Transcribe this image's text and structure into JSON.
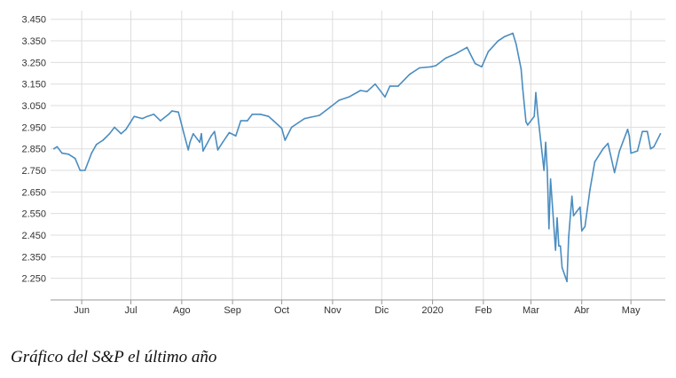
{
  "caption": "Gráfico del S&P el último año",
  "chart_data": {
    "type": "line",
    "title": "",
    "xlabel": "",
    "ylabel": "",
    "ylim": [
      2150,
      3490
    ],
    "yticks": [
      2250,
      2350,
      2450,
      2550,
      2650,
      2750,
      2850,
      2950,
      3050,
      3150,
      3250,
      3350,
      3450
    ],
    "ytick_labels": [
      "2.250",
      "2.350",
      "2.450",
      "2.550",
      "2.650",
      "2.750",
      "2.850",
      "2.950",
      "3.050",
      "3.150",
      "3.250",
      "3.350",
      "3.450"
    ],
    "xlim": [
      "2019-05-13",
      "2020-05-22"
    ],
    "xticks": [
      "2019-06-01",
      "2019-07-01",
      "2019-08-01",
      "2019-09-01",
      "2019-10-01",
      "2019-11-01",
      "2019-12-01",
      "2020-01-01",
      "2020-02-01",
      "2020-03-01",
      "2020-04-01",
      "2020-05-01"
    ],
    "xtick_labels": [
      "Jun",
      "Jul",
      "Ago",
      "Sep",
      "Oct",
      "Nov",
      "Dic",
      "2020",
      "Feb",
      "Mar",
      "Abr",
      "May"
    ],
    "grid": true,
    "line_color": "#4a8dc0",
    "series": [
      {
        "x": [
          "2019-05-15",
          "2019-05-17",
          "2019-05-20",
          "2019-05-24",
          "2019-05-28",
          "2019-05-31",
          "2019-06-03",
          "2019-06-07",
          "2019-06-10",
          "2019-06-14",
          "2019-06-18",
          "2019-06-21",
          "2019-06-25",
          "2019-06-28",
          "2019-07-03",
          "2019-07-08",
          "2019-07-11",
          "2019-07-15",
          "2019-07-19",
          "2019-07-24",
          "2019-07-26",
          "2019-07-30",
          "2019-08-02",
          "2019-08-05",
          "2019-08-06",
          "2019-08-08",
          "2019-08-12",
          "2019-08-13",
          "2019-08-14",
          "2019-08-19",
          "2019-08-21",
          "2019-08-23",
          "2019-08-26",
          "2019-08-30",
          "2019-09-03",
          "2019-09-06",
          "2019-09-10",
          "2019-09-13",
          "2019-09-18",
          "2019-09-23",
          "2019-09-26",
          "2019-10-01",
          "2019-10-03",
          "2019-10-07",
          "2019-10-11",
          "2019-10-15",
          "2019-10-18",
          "2019-10-24",
          "2019-10-30",
          "2019-11-05",
          "2019-11-11",
          "2019-11-18",
          "2019-11-22",
          "2019-11-27",
          "2019-12-03",
          "2019-12-06",
          "2019-12-11",
          "2019-12-18",
          "2019-12-24",
          "2019-12-31",
          "2020-01-03",
          "2020-01-09",
          "2020-01-15",
          "2020-01-22",
          "2020-01-27",
          "2020-01-31",
          "2020-02-04",
          "2020-02-10",
          "2020-02-14",
          "2020-02-19",
          "2020-02-21",
          "2020-02-24",
          "2020-02-25",
          "2020-02-27",
          "2020-02-28",
          "2020-03-03",
          "2020-03-04",
          "2020-03-05",
          "2020-03-09",
          "2020-03-10",
          "2020-03-11",
          "2020-03-12",
          "2020-03-13",
          "2020-03-16",
          "2020-03-17",
          "2020-03-18",
          "2020-03-19",
          "2020-03-20",
          "2020-03-23",
          "2020-03-24",
          "2020-03-26",
          "2020-03-27",
          "2020-03-31",
          "2020-04-01",
          "2020-04-03",
          "2020-04-06",
          "2020-04-09",
          "2020-04-14",
          "2020-04-17",
          "2020-04-21",
          "2020-04-24",
          "2020-04-29",
          "2020-04-30",
          "2020-05-01",
          "2020-05-05",
          "2020-05-08",
          "2020-05-11",
          "2020-05-13",
          "2020-05-15",
          "2020-05-19"
        ],
        "values": [
          2850,
          2860,
          2830,
          2825,
          2805,
          2750,
          2750,
          2830,
          2870,
          2890,
          2920,
          2950,
          2920,
          2940,
          3000,
          2990,
          3000,
          3010,
          2980,
          3010,
          3025,
          3020,
          2930,
          2845,
          2880,
          2920,
          2880,
          2920,
          2840,
          2910,
          2930,
          2845,
          2880,
          2925,
          2910,
          2980,
          2980,
          3010,
          3010,
          3000,
          2980,
          2945,
          2890,
          2950,
          2970,
          2990,
          2995,
          3005,
          3040,
          3075,
          3090,
          3120,
          3115,
          3150,
          3090,
          3140,
          3140,
          3195,
          3225,
          3230,
          3235,
          3270,
          3290,
          3320,
          3245,
          3230,
          3300,
          3350,
          3370,
          3385,
          3335,
          3220,
          3130,
          2975,
          2960,
          3000,
          3110,
          3020,
          2750,
          2880,
          2750,
          2480,
          2710,
          2380,
          2530,
          2400,
          2400,
          2300,
          2235,
          2440,
          2630,
          2540,
          2580,
          2470,
          2490,
          2660,
          2790,
          2850,
          2875,
          2740,
          2840,
          2940,
          2910,
          2830,
          2840,
          2930,
          2930,
          2850,
          2860,
          2920
        ]
      }
    ]
  }
}
